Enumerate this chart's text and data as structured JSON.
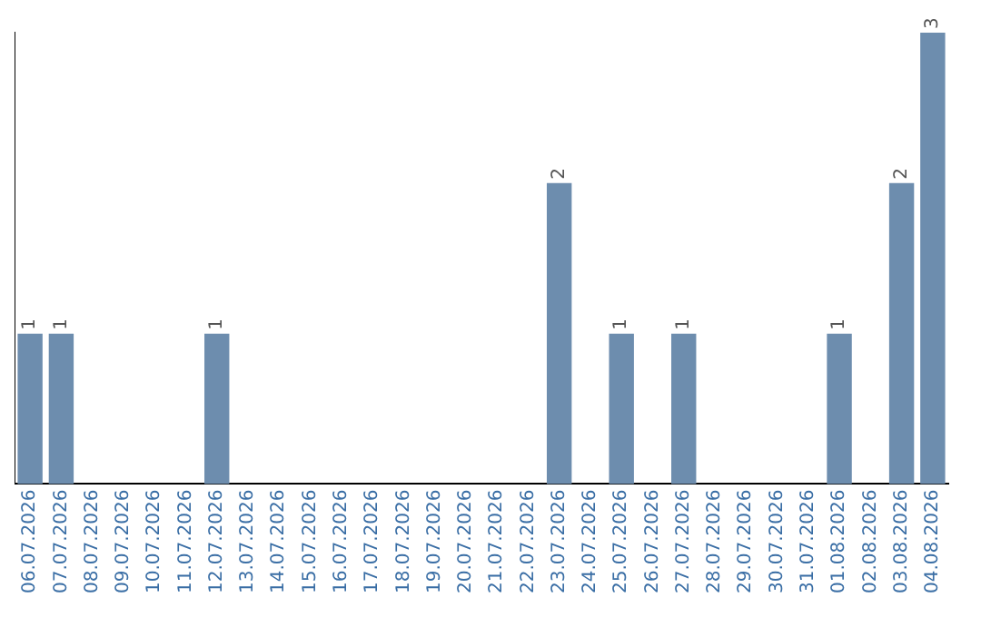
{
  "chart_data": {
    "type": "bar",
    "categories": [
      "06.07.2026",
      "07.07.2026",
      "08.07.2026",
      "09.07.2026",
      "10.07.2026",
      "11.07.2026",
      "12.07.2026",
      "13.07.2026",
      "14.07.2026",
      "15.07.2026",
      "16.07.2026",
      "17.07.2026",
      "18.07.2026",
      "19.07.2026",
      "20.07.2026",
      "21.07.2026",
      "22.07.2026",
      "23.07.2026",
      "24.07.2026",
      "25.07.2026",
      "26.07.2026",
      "27.07.2026",
      "28.07.2026",
      "29.07.2026",
      "30.07.2026",
      "31.07.2026",
      "01.08.2026",
      "02.08.2026",
      "03.08.2026",
      "04.08.2026"
    ],
    "values": [
      1,
      1,
      0,
      0,
      0,
      0,
      1,
      0,
      0,
      0,
      0,
      0,
      0,
      0,
      0,
      0,
      0,
      2,
      0,
      1,
      0,
      1,
      0,
      0,
      0,
      0,
      1,
      0,
      2,
      3
    ],
    "value_labels": [
      "1",
      "1",
      null,
      null,
      null,
      null,
      "1",
      null,
      null,
      null,
      null,
      null,
      null,
      null,
      null,
      null,
      null,
      "2",
      null,
      "1",
      null,
      "1",
      null,
      null,
      null,
      null,
      "1",
      null,
      "2",
      "3"
    ],
    "color": "#6d8dae",
    "tick_labels": "x",
    "grid": false,
    "legend": false
  }
}
